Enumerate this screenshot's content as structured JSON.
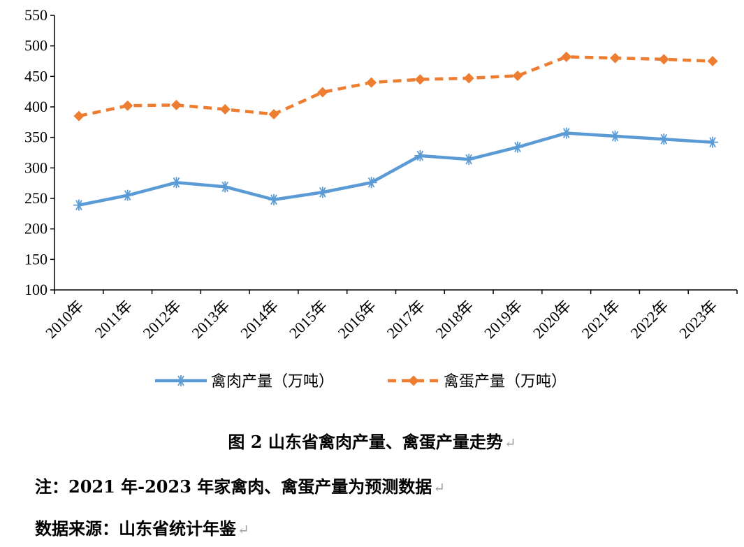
{
  "chart_data": {
    "type": "line",
    "categories": [
      "2010年",
      "2011年",
      "2012年",
      "2013年",
      "2014年",
      "2015年",
      "2016年",
      "2017年",
      "2018年",
      "2019年",
      "2020年",
      "2021年",
      "2022年",
      "2023年"
    ],
    "series": [
      {
        "name": "禽肉产量（万吨）",
        "color": "#5B9BD5",
        "marker": "asterisk",
        "dash": "solid",
        "values": [
          239,
          255,
          276,
          269,
          248,
          260,
          276,
          320,
          314,
          334,
          357,
          352,
          347,
          342
        ]
      },
      {
        "name": "禽蛋产量（万吨）",
        "color": "#ED7D31",
        "marker": "diamond",
        "dash": "dashed",
        "values": [
          385,
          402,
          403,
          396,
          388,
          424,
          440,
          445,
          447,
          451,
          482,
          480,
          478,
          475
        ]
      }
    ],
    "yticks": [
      "100",
      "150",
      "200",
      "250",
      "300",
      "350",
      "400",
      "450",
      "500",
      "550"
    ],
    "ylim": [
      100,
      550
    ],
    "grid": false,
    "legend": "bottom"
  },
  "caption": "图 2  山东省禽肉产量、禽蛋产量走势",
  "note": "注：2021 年-2023 年家禽肉、禽蛋产量为预测数据",
  "source": "数据来源：山东省统计年鉴",
  "return_mark": "↵"
}
